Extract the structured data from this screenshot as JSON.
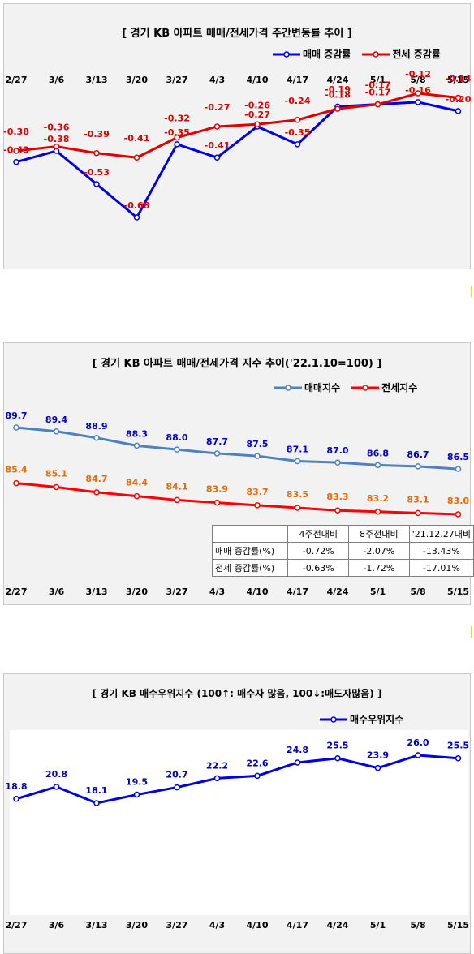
{
  "chart_data": [
    {
      "type": "line",
      "title": "[ 경기  KB 아파트 매매/전세가격 주간변동률 추이 ]",
      "categories": [
        "2/27",
        "3/6",
        "3/13",
        "3/20",
        "3/27",
        "4/3",
        "4/10",
        "4/17",
        "4/24",
        "5/1",
        "5/8",
        "5/15"
      ],
      "series": [
        {
          "name": "매매 증감률",
          "color": "#0000e0",
          "values": [
            -0.43,
            -0.38,
            -0.53,
            -0.68,
            -0.35,
            -0.41,
            -0.27,
            -0.35,
            -0.18,
            -0.17,
            -0.16,
            -0.2
          ]
        },
        {
          "name": "전세 증감률",
          "color": "#e00000",
          "values": [
            -0.38,
            -0.36,
            -0.39,
            -0.41,
            -0.32,
            -0.27,
            -0.26,
            -0.24,
            -0.19,
            -0.17,
            -0.12,
            -0.14
          ]
        }
      ],
      "legend": "top-right"
    },
    {
      "type": "line",
      "title": "[  경기  KB 아파트 매매/전세가격 지수 추이('22.1.10=100)  ]",
      "categories": [
        "2/27",
        "3/6",
        "3/13",
        "3/20",
        "3/27",
        "4/3",
        "4/10",
        "4/17",
        "4/24",
        "5/1",
        "5/8",
        "5/15"
      ],
      "series": [
        {
          "name": "매매지수",
          "color": "#4f81bd",
          "label_color": "#0000cc",
          "values": [
            89.7,
            89.4,
            88.9,
            88.3,
            88.0,
            87.7,
            87.5,
            87.1,
            87.0,
            86.8,
            86.7,
            86.5
          ]
        },
        {
          "name": "전세지수",
          "color": "#ff0000",
          "label_color": "#e46c0a",
          "values": [
            85.4,
            85.1,
            84.7,
            84.4,
            84.1,
            83.9,
            83.7,
            83.5,
            83.3,
            83.2,
            83.1,
            83.0
          ]
        }
      ],
      "legend": "top-right",
      "table": {
        "headers": [
          "",
          "4주전대비",
          "8주전대비",
          "'21.12.27대비"
        ],
        "rows": [
          [
            "매매 증감률(%)",
            "-0.72%",
            "-2.07%",
            "-13.43%"
          ],
          [
            "전세 증감률(%)",
            "-0.63%",
            "-1.72%",
            "-17.01%"
          ]
        ]
      }
    },
    {
      "type": "line",
      "title": "[  경기  KB 매수우위지수 (100↑: 매수자 많음, 100↓:매도자많음)  ]",
      "categories": [
        "2/27",
        "3/6",
        "3/13",
        "3/20",
        "3/27",
        "4/3",
        "4/10",
        "4/17",
        "4/24",
        "5/1",
        "5/8",
        "5/15"
      ],
      "series": [
        {
          "name": "매수우위지수",
          "color": "#0000e0",
          "values": [
            18.8,
            20.8,
            18.1,
            19.5,
            20.7,
            22.2,
            22.6,
            24.8,
            25.5,
            23.9,
            26.0,
            25.5
          ]
        }
      ],
      "legend": "top-right"
    }
  ]
}
